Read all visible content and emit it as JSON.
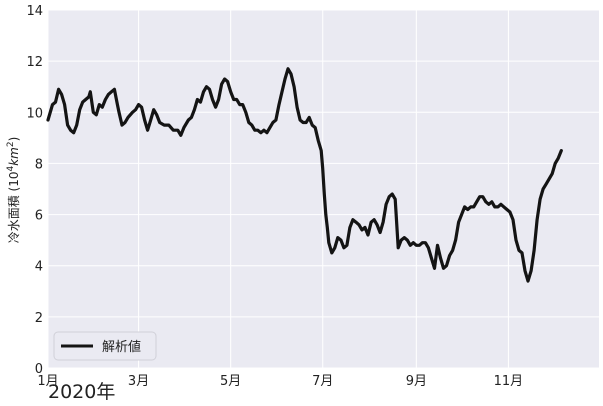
{
  "chart_data": {
    "type": "line",
    "ylabel_main": "冷水面積 (10",
    "ylabel_sup": "4",
    "ylabel_unit": "km",
    "ylabel_unit_sup": "2",
    "ylabel_close": ")",
    "year_label": "2020年",
    "ylim": [
      0,
      14
    ],
    "yticks": [
      0,
      2,
      4,
      6,
      8,
      10,
      12,
      14
    ],
    "xlim_days": [
      0,
      365
    ],
    "xticks": [
      {
        "day": 0,
        "label": "1月"
      },
      {
        "day": 60,
        "label": "3月"
      },
      {
        "day": 121,
        "label": "5月"
      },
      {
        "day": 182,
        "label": "7月"
      },
      {
        "day": 244,
        "label": "9月"
      },
      {
        "day": 305,
        "label": "11月"
      }
    ],
    "grid": true,
    "legend_position": "lower-left",
    "series": [
      {
        "name": "解析値",
        "color": "#141414",
        "points": [
          [
            0,
            9.7
          ],
          [
            3,
            10.3
          ],
          [
            5,
            10.4
          ],
          [
            7,
            10.9
          ],
          [
            9,
            10.7
          ],
          [
            11,
            10.3
          ],
          [
            13,
            9.5
          ],
          [
            15,
            9.3
          ],
          [
            17,
            9.2
          ],
          [
            19,
            9.5
          ],
          [
            21,
            10.1
          ],
          [
            23,
            10.4
          ],
          [
            25,
            10.5
          ],
          [
            27,
            10.6
          ],
          [
            28,
            10.8
          ],
          [
            30,
            10.0
          ],
          [
            32,
            9.9
          ],
          [
            34,
            10.3
          ],
          [
            36,
            10.2
          ],
          [
            38,
            10.5
          ],
          [
            40,
            10.7
          ],
          [
            42,
            10.8
          ],
          [
            44,
            10.9
          ],
          [
            46,
            10.3
          ],
          [
            47,
            10.0
          ],
          [
            49,
            9.5
          ],
          [
            51,
            9.6
          ],
          [
            53,
            9.8
          ],
          [
            56,
            10.0
          ],
          [
            58,
            10.1
          ],
          [
            60,
            10.3
          ],
          [
            62,
            10.2
          ],
          [
            64,
            9.7
          ],
          [
            66,
            9.3
          ],
          [
            68,
            9.7
          ],
          [
            70,
            10.1
          ],
          [
            72,
            9.9
          ],
          [
            74,
            9.6
          ],
          [
            77,
            9.5
          ],
          [
            80,
            9.5
          ],
          [
            83,
            9.3
          ],
          [
            86,
            9.3
          ],
          [
            88,
            9.1
          ],
          [
            90,
            9.4
          ],
          [
            93,
            9.7
          ],
          [
            95,
            9.8
          ],
          [
            97,
            10.1
          ],
          [
            99,
            10.5
          ],
          [
            101,
            10.4
          ],
          [
            103,
            10.8
          ],
          [
            105,
            11.0
          ],
          [
            107,
            10.9
          ],
          [
            109,
            10.5
          ],
          [
            111,
            10.2
          ],
          [
            113,
            10.5
          ],
          [
            115,
            11.1
          ],
          [
            117,
            11.3
          ],
          [
            119,
            11.2
          ],
          [
            121,
            10.8
          ],
          [
            123,
            10.5
          ],
          [
            125,
            10.5
          ],
          [
            127,
            10.3
          ],
          [
            129,
            10.3
          ],
          [
            131,
            10.0
          ],
          [
            133,
            9.6
          ],
          [
            135,
            9.5
          ],
          [
            137,
            9.3
          ],
          [
            139,
            9.3
          ],
          [
            141,
            9.2
          ],
          [
            143,
            9.3
          ],
          [
            145,
            9.2
          ],
          [
            147,
            9.4
          ],
          [
            149,
            9.6
          ],
          [
            151,
            9.7
          ],
          [
            153,
            10.3
          ],
          [
            155,
            10.8
          ],
          [
            157,
            11.3
          ],
          [
            159,
            11.7
          ],
          [
            161,
            11.5
          ],
          [
            163,
            11.0
          ],
          [
            165,
            10.2
          ],
          [
            167,
            9.7
          ],
          [
            169,
            9.6
          ],
          [
            171,
            9.6
          ],
          [
            173,
            9.8
          ],
          [
            175,
            9.5
          ],
          [
            177,
            9.4
          ],
          [
            179,
            8.9
          ],
          [
            181,
            8.5
          ],
          [
            182,
            7.8
          ],
          [
            183,
            6.8
          ],
          [
            184,
            6.0
          ],
          [
            185,
            5.5
          ],
          [
            186,
            4.9
          ],
          [
            188,
            4.5
          ],
          [
            190,
            4.7
          ],
          [
            192,
            5.1
          ],
          [
            194,
            5.0
          ],
          [
            196,
            4.7
          ],
          [
            198,
            4.8
          ],
          [
            200,
            5.5
          ],
          [
            202,
            5.8
          ],
          [
            204,
            5.7
          ],
          [
            206,
            5.6
          ],
          [
            208,
            5.4
          ],
          [
            210,
            5.5
          ],
          [
            212,
            5.2
          ],
          [
            214,
            5.7
          ],
          [
            216,
            5.8
          ],
          [
            218,
            5.6
          ],
          [
            220,
            5.3
          ],
          [
            222,
            5.7
          ],
          [
            224,
            6.4
          ],
          [
            226,
            6.7
          ],
          [
            228,
            6.8
          ],
          [
            230,
            6.6
          ],
          [
            232,
            4.7
          ],
          [
            234,
            5.0
          ],
          [
            236,
            5.1
          ],
          [
            238,
            5.0
          ],
          [
            240,
            4.8
          ],
          [
            242,
            4.9
          ],
          [
            244,
            4.8
          ],
          [
            246,
            4.8
          ],
          [
            248,
            4.9
          ],
          [
            250,
            4.9
          ],
          [
            252,
            4.7
          ],
          [
            254,
            4.3
          ],
          [
            256,
            3.9
          ],
          [
            258,
            4.8
          ],
          [
            260,
            4.3
          ],
          [
            262,
            3.9
          ],
          [
            264,
            4.0
          ],
          [
            266,
            4.4
          ],
          [
            268,
            4.6
          ],
          [
            270,
            5.0
          ],
          [
            272,
            5.7
          ],
          [
            274,
            6.0
          ],
          [
            276,
            6.3
          ],
          [
            278,
            6.2
          ],
          [
            280,
            6.3
          ],
          [
            282,
            6.3
          ],
          [
            284,
            6.5
          ],
          [
            286,
            6.7
          ],
          [
            288,
            6.7
          ],
          [
            290,
            6.5
          ],
          [
            292,
            6.4
          ],
          [
            294,
            6.5
          ],
          [
            296,
            6.3
          ],
          [
            298,
            6.3
          ],
          [
            300,
            6.4
          ],
          [
            302,
            6.3
          ],
          [
            304,
            6.2
          ],
          [
            306,
            6.1
          ],
          [
            308,
            5.8
          ],
          [
            310,
            5.0
          ],
          [
            312,
            4.6
          ],
          [
            314,
            4.5
          ],
          [
            316,
            3.8
          ],
          [
            318,
            3.4
          ],
          [
            320,
            3.8
          ],
          [
            322,
            4.6
          ],
          [
            324,
            5.8
          ],
          [
            326,
            6.6
          ],
          [
            328,
            7.0
          ],
          [
            330,
            7.2
          ],
          [
            332,
            7.4
          ],
          [
            334,
            7.6
          ],
          [
            336,
            8.0
          ],
          [
            338,
            8.2
          ],
          [
            340,
            8.5
          ]
        ]
      }
    ]
  }
}
